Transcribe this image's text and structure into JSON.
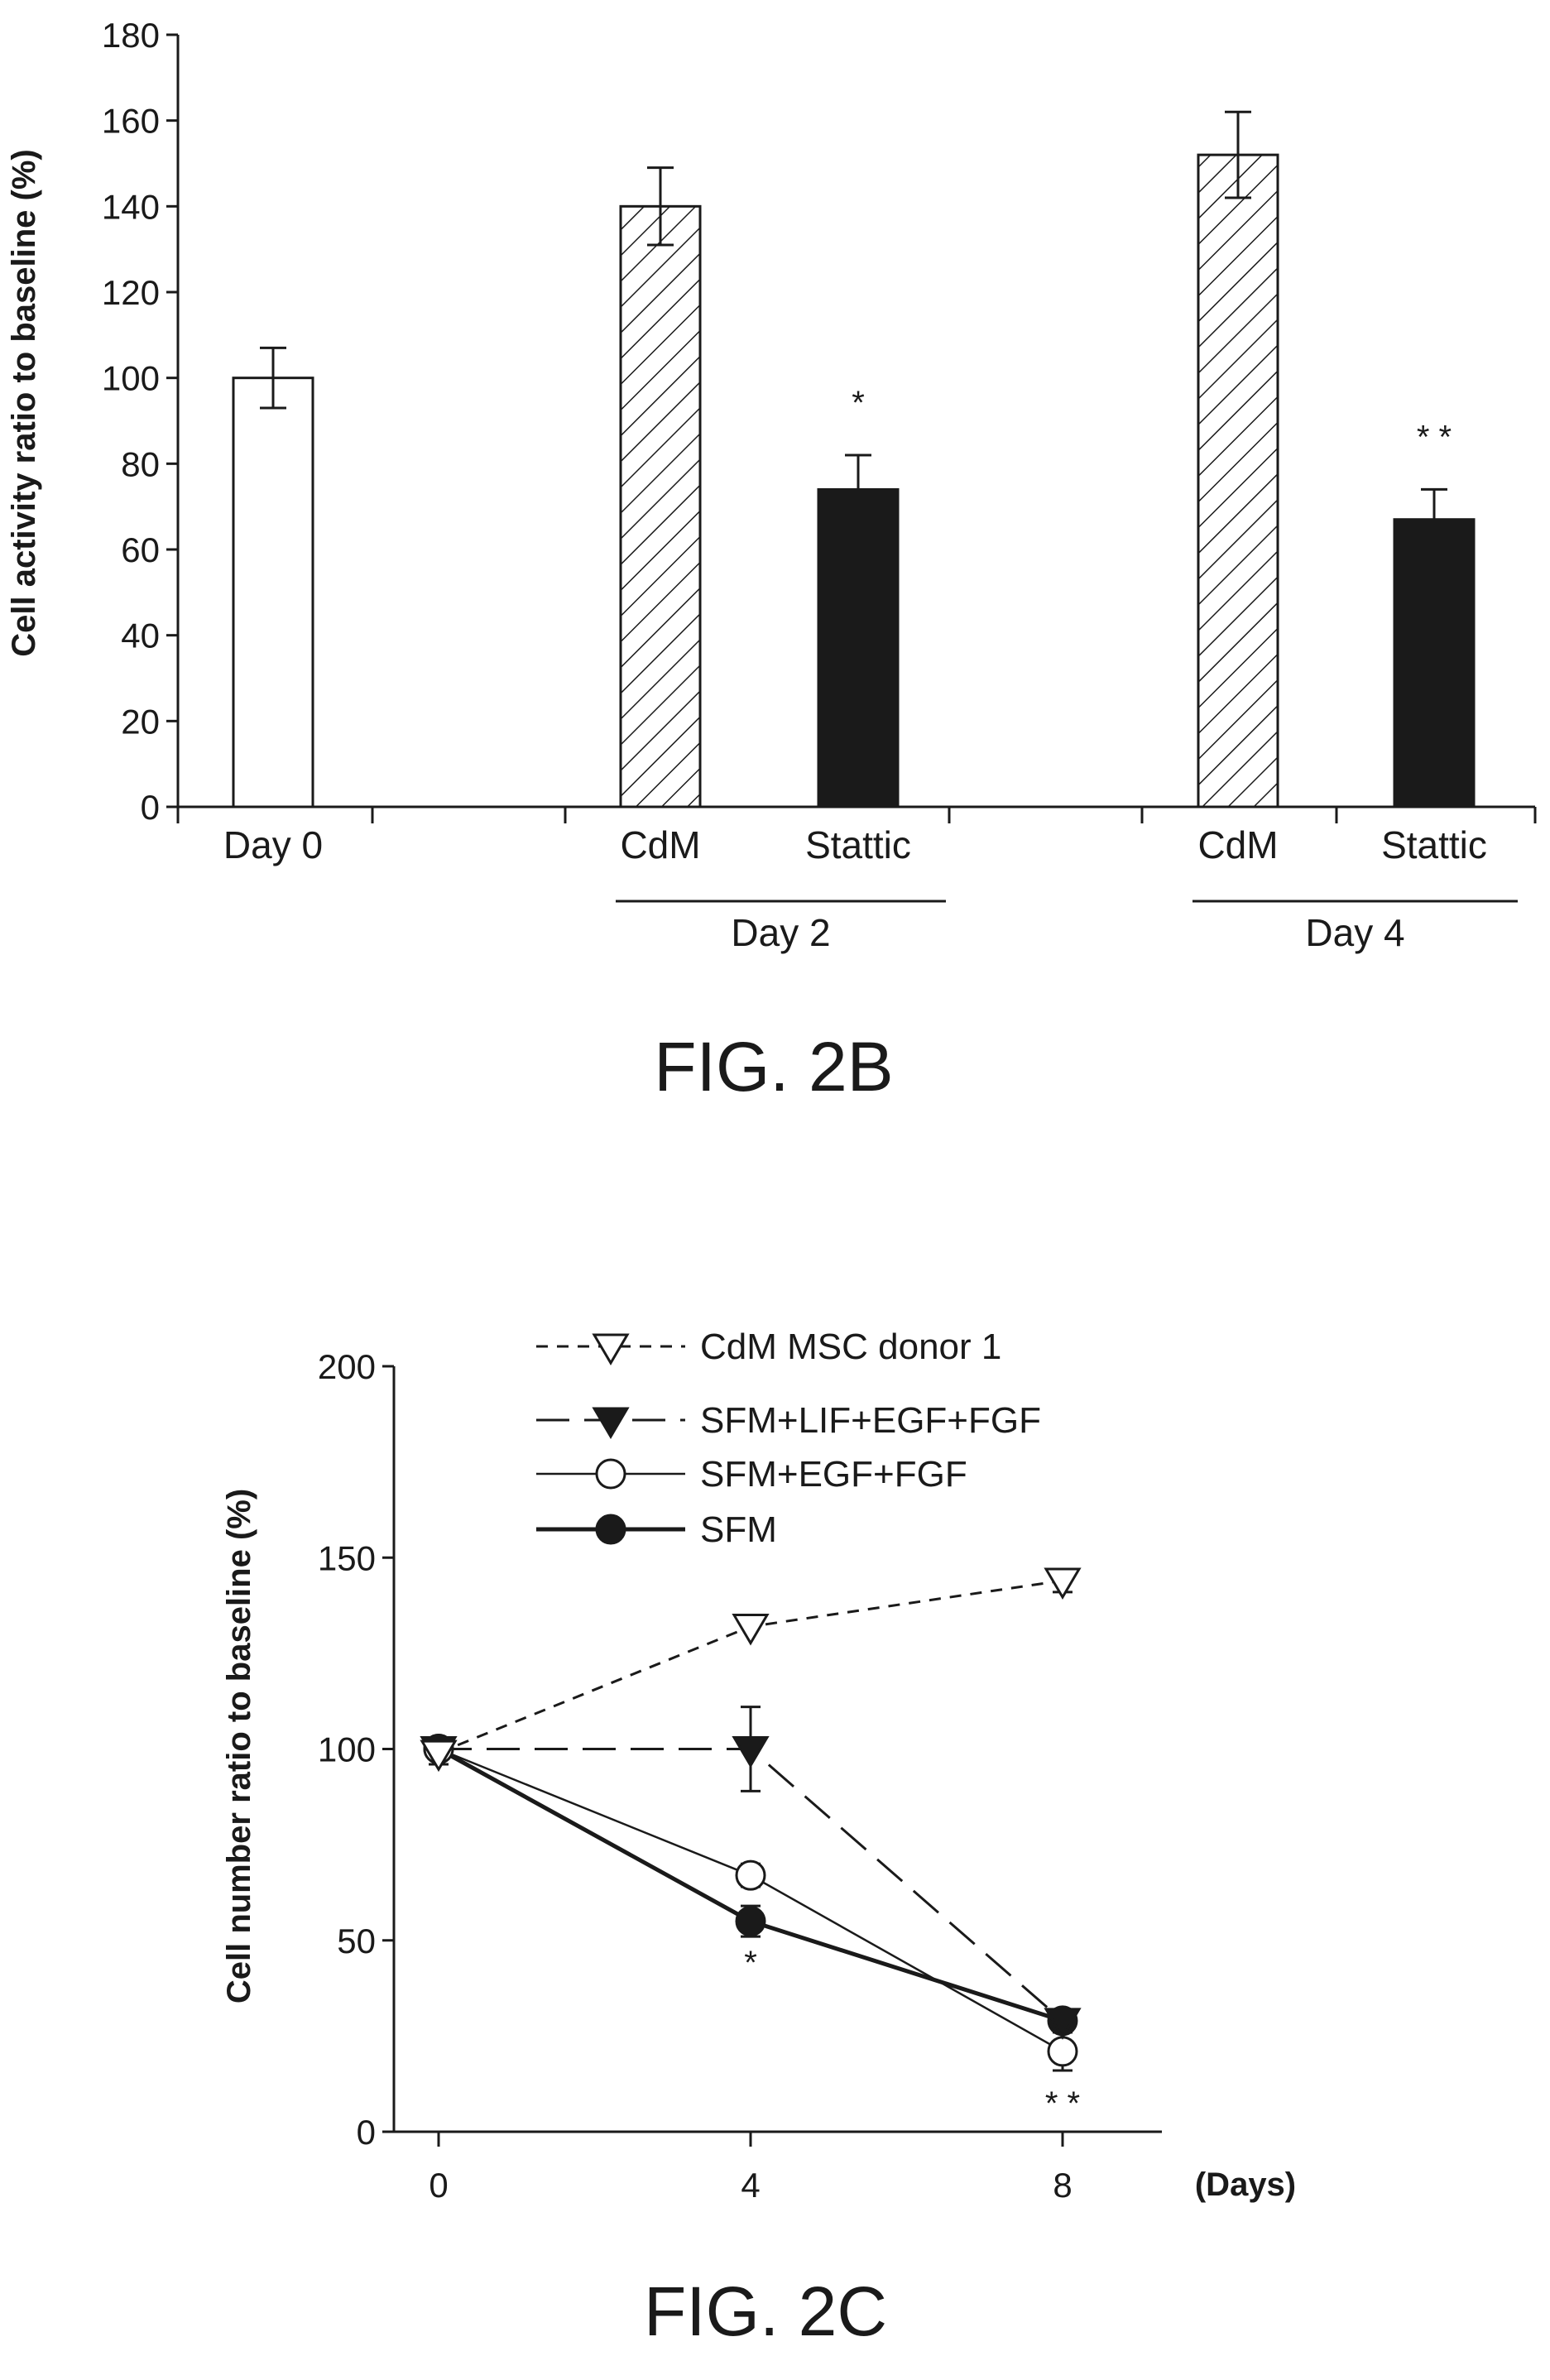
{
  "charts": [
    {
      "id": "fig2b",
      "caption": "FIG. 2B",
      "chart_data": {
        "type": "bar",
        "ylabel": "Cell activity ratio to baseline (%)",
        "ylim": [
          0,
          180
        ],
        "yticks": [
          0,
          20,
          40,
          60,
          80,
          100,
          120,
          140,
          160,
          180
        ],
        "bars": [
          {
            "label": "Day 0",
            "value": 100,
            "error": 7,
            "style": "open",
            "annotation": ""
          },
          {
            "label": "CdM",
            "value": 140,
            "error": 9,
            "style": "hatched",
            "annotation": ""
          },
          {
            "label": "Stattic",
            "value": 74,
            "error": 8,
            "style": "filled",
            "annotation": "*"
          },
          {
            "label": "CdM",
            "value": 152,
            "error": 10,
            "style": "hatched",
            "annotation": ""
          },
          {
            "label": "Stattic",
            "value": 67,
            "error": 7,
            "style": "filled",
            "annotation": "* *"
          }
        ],
        "groups": [
          {
            "label": "Day 2"
          },
          {
            "label": "Day 4"
          }
        ]
      }
    },
    {
      "id": "fig2c",
      "caption": "FIG. 2C",
      "chart_data": {
        "type": "line",
        "ylabel": "Cell number ratio to baseline (%)",
        "xlabel": "(Days)",
        "x": [
          0,
          4,
          8
        ],
        "ylim": [
          0,
          200
        ],
        "yticks": [
          0,
          50,
          100,
          150,
          200
        ],
        "xticks": [
          0,
          4,
          8
        ],
        "legend_position": "top",
        "series": [
          {
            "name": "CdM MSC donor 1",
            "values": [
              99,
              132,
              144
            ],
            "errors": [
              3,
              2,
              3
            ],
            "marker": "triangle-down-open",
            "line": "short-dash"
          },
          {
            "name": "SFM+LIF+EGF+FGF",
            "values": [
              100,
              100,
              29
            ],
            "errors": [
              2,
              11,
              3
            ],
            "marker": "triangle-down-filled",
            "line": "long-dash"
          },
          {
            "name": "SFM+EGF+FGF",
            "values": [
              100,
              67,
              21
            ],
            "errors": [
              2,
              3,
              5
            ],
            "marker": "circle-open",
            "line": "thin-solid"
          },
          {
            "name": "SFM",
            "values": [
              100,
              55,
              29
            ],
            "errors": [
              2,
              4,
              3
            ],
            "marker": "circle-filled",
            "line": "thick-solid"
          }
        ],
        "annotations": [
          {
            "x": 4,
            "text": "*"
          },
          {
            "x": 8,
            "text": "* *"
          }
        ]
      }
    }
  ]
}
